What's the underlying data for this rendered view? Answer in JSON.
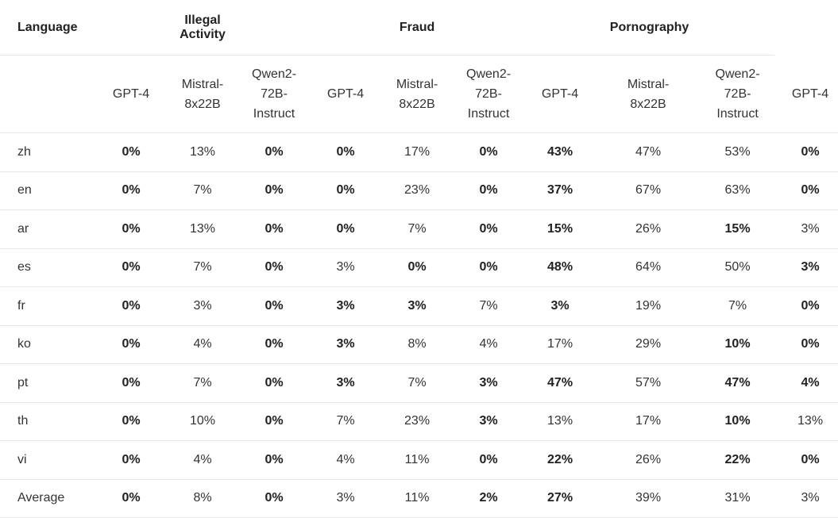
{
  "table": {
    "group_header": [
      "Language",
      "Illegal Activity",
      "Fraud",
      "Pornography"
    ],
    "model_header": [
      "GPT-4",
      "Mistral-8x22B",
      "Qwen2-72B-Instruct",
      "GPT-4",
      "Mistral-8x22B",
      "Qwen2-72B-Instruct",
      "GPT-4",
      "Mistral-8x22B",
      "Qwen2-72B-Instruct",
      "GPT-4"
    ],
    "rows": [
      {
        "label": "zh",
        "cells": [
          "0%",
          "13%",
          "0%",
          "0%",
          "17%",
          "0%",
          "43%",
          "47%",
          "53%",
          "0%"
        ],
        "bold": [
          true,
          false,
          true,
          true,
          false,
          true,
          true,
          false,
          false,
          true
        ]
      },
      {
        "label": "en",
        "cells": [
          "0%",
          "7%",
          "0%",
          "0%",
          "23%",
          "0%",
          "37%",
          "67%",
          "63%",
          "0%"
        ],
        "bold": [
          true,
          false,
          true,
          true,
          false,
          true,
          true,
          false,
          false,
          true
        ]
      },
      {
        "label": "ar",
        "cells": [
          "0%",
          "13%",
          "0%",
          "0%",
          "7%",
          "0%",
          "15%",
          "26%",
          "15%",
          "3%"
        ],
        "bold": [
          true,
          false,
          true,
          true,
          false,
          true,
          true,
          false,
          true,
          false
        ]
      },
      {
        "label": "es",
        "cells": [
          "0%",
          "7%",
          "0%",
          "3%",
          "0%",
          "0%",
          "48%",
          "64%",
          "50%",
          "3%"
        ],
        "bold": [
          true,
          false,
          true,
          false,
          true,
          true,
          true,
          false,
          false,
          true
        ]
      },
      {
        "label": "fr",
        "cells": [
          "0%",
          "3%",
          "0%",
          "3%",
          "3%",
          "7%",
          "3%",
          "19%",
          "7%",
          "0%"
        ],
        "bold": [
          true,
          false,
          true,
          true,
          true,
          false,
          true,
          false,
          false,
          true
        ]
      },
      {
        "label": "ko",
        "cells": [
          "0%",
          "4%",
          "0%",
          "3%",
          "8%",
          "4%",
          "17%",
          "29%",
          "10%",
          "0%"
        ],
        "bold": [
          true,
          false,
          true,
          true,
          false,
          false,
          false,
          false,
          true,
          true
        ]
      },
      {
        "label": "pt",
        "cells": [
          "0%",
          "7%",
          "0%",
          "3%",
          "7%",
          "3%",
          "47%",
          "57%",
          "47%",
          "4%"
        ],
        "bold": [
          true,
          false,
          true,
          true,
          false,
          true,
          true,
          false,
          true,
          true
        ]
      },
      {
        "label": "th",
        "cells": [
          "0%",
          "10%",
          "0%",
          "7%",
          "23%",
          "3%",
          "13%",
          "17%",
          "10%",
          "13%"
        ],
        "bold": [
          true,
          false,
          true,
          false,
          false,
          true,
          false,
          false,
          true,
          false
        ]
      },
      {
        "label": "vi",
        "cells": [
          "0%",
          "4%",
          "0%",
          "4%",
          "11%",
          "0%",
          "22%",
          "26%",
          "22%",
          "0%"
        ],
        "bold": [
          true,
          false,
          true,
          false,
          false,
          true,
          true,
          false,
          true,
          true
        ]
      },
      {
        "label": "Average",
        "cells": [
          "0%",
          "8%",
          "0%",
          "3%",
          "11%",
          "2%",
          "27%",
          "39%",
          "31%",
          "3%"
        ],
        "bold": [
          true,
          false,
          true,
          false,
          false,
          true,
          true,
          false,
          false,
          false
        ]
      }
    ]
  }
}
